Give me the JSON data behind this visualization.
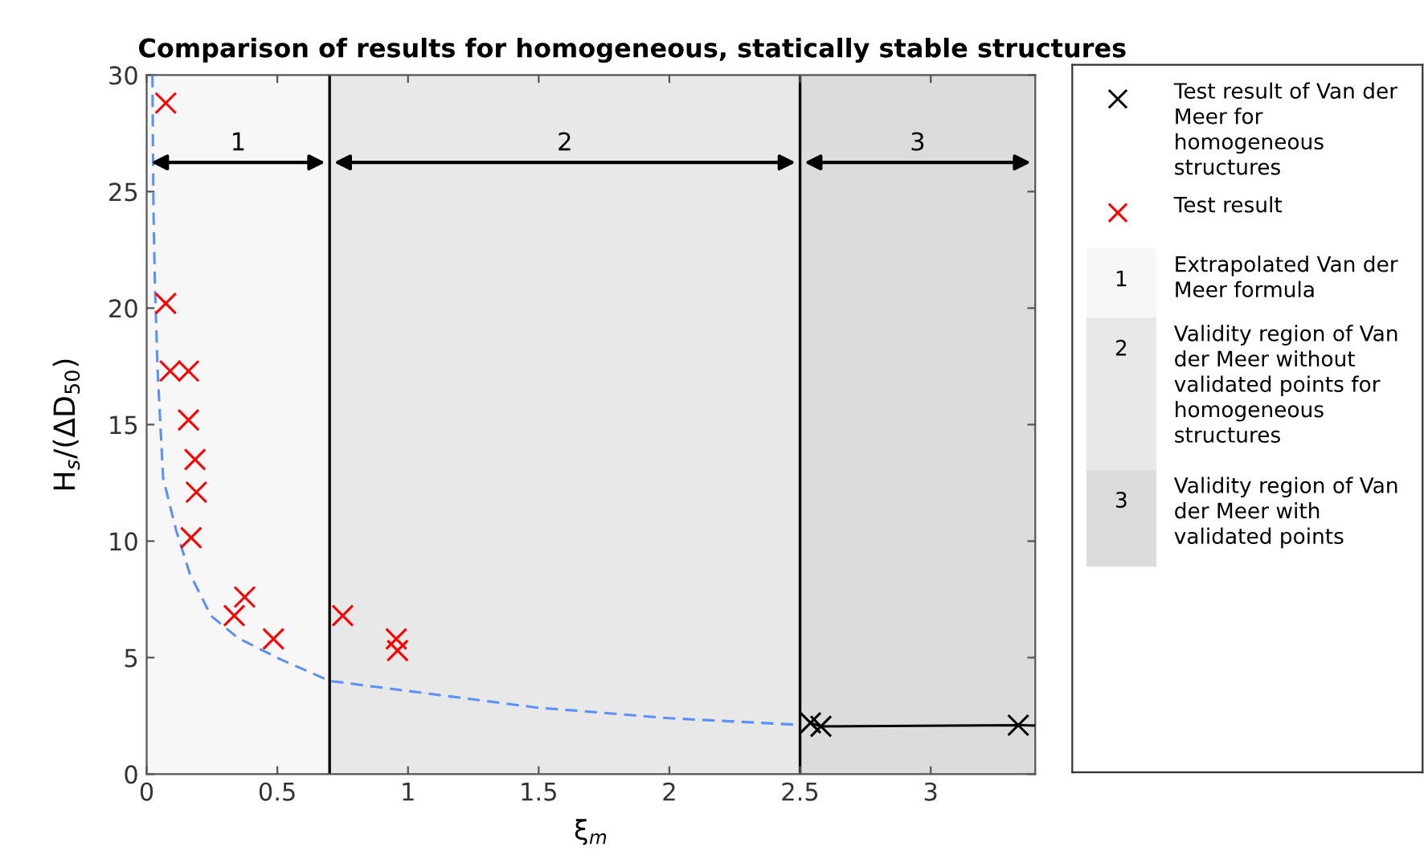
{
  "chart_data": {
    "type": "scatter",
    "title": "Comparison of results for homogeneous, statically stable structures",
    "xlabel": "ξ$_{m}$",
    "ylabel": "H$_{s}$/(ΔD$_{50}$)",
    "xlim": [
      0,
      3.4
    ],
    "ylim": [
      0,
      30
    ],
    "xticks": [
      0,
      0.5,
      1,
      1.5,
      2,
      2.5,
      3
    ],
    "yticks": [
      0,
      5,
      10,
      15,
      20,
      25,
      30
    ],
    "grid": false,
    "legend": "right",
    "series": [
      {
        "name": "Test result of Van der Meer for homogeneous structures",
        "color": "#000000",
        "marker": "cross",
        "x": [
          2.54,
          2.58,
          3.335
        ],
        "values": [
          2.2,
          2.05,
          2.1
        ]
      },
      {
        "name": "Test result",
        "color": "#ff0000",
        "marker": "cross",
        "x": [
          0.073,
          0.073,
          0.09,
          0.16,
          0.16,
          0.185,
          0.19,
          0.17,
          0.335,
          0.375,
          0.485,
          0.75,
          0.955,
          0.96
        ],
        "values": [
          28.8,
          20.2,
          17.3,
          17.3,
          15.2,
          13.5,
          12.1,
          10.15,
          6.8,
          7.6,
          5.8,
          6.8,
          5.8,
          5.3
        ]
      },
      {
        "type": "line",
        "color": "#5b8ff9",
        "line_style": "dashed",
        "x": [
          0.022,
          0.026,
          0.032,
          0.042,
          0.052,
          0.063,
          0.113,
          0.165,
          0.246,
          0.348,
          0.511,
          0.7,
          1.49,
          2.0,
          2.49
        ],
        "values": [
          30,
          24.2,
          20.8,
          17.3,
          15.1,
          12.7,
          10.45,
          8.6,
          6.8,
          5.85,
          4.93,
          4.0,
          2.86,
          2.4,
          2.12
        ]
      },
      {
        "type": "line",
        "color": "#000000",
        "line_style": "solid",
        "x": [
          2.54,
          2.58,
          3.335,
          3.4
        ],
        "values": [
          2.2,
          2.05,
          2.1,
          2.08
        ]
      }
    ],
    "ref_lines": [
      {
        "axis": "x",
        "value": 0.7,
        "color": "#000000"
      },
      {
        "axis": "x",
        "value": 2.5,
        "color": "#000000"
      }
    ],
    "bands": [
      {
        "axis": "x",
        "from": 0,
        "to": 0.7,
        "label": "1",
        "color": "#f7f7f7"
      },
      {
        "axis": "x",
        "from": 0.7,
        "to": 2.5,
        "label": "2",
        "color": "#e8e8e8"
      },
      {
        "axis": "x",
        "from": 2.5,
        "to": 3.4,
        "label": "3",
        "color": "#dcdcdc"
      }
    ],
    "annotations": [
      "Extrapolated Van der Meer formula",
      "Validity region of Van der Meer without validated points for homogeneous structures",
      "Validity region of Van der Meer with validated points"
    ]
  }
}
